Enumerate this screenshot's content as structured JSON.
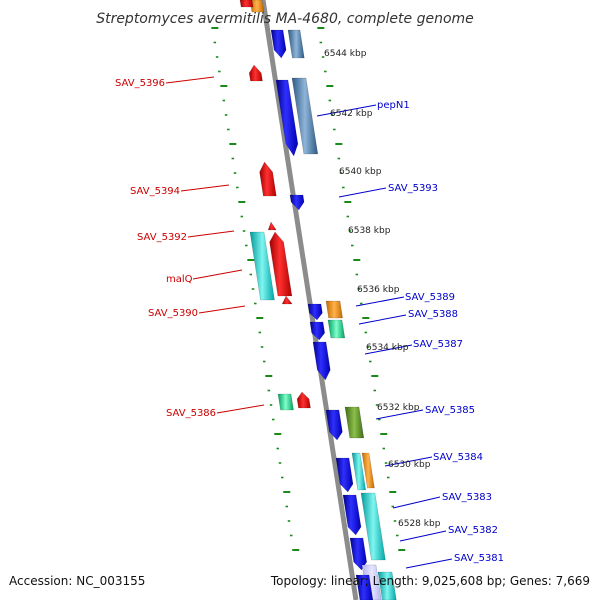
{
  "title": "Streptomyces avermitilis MA-4680, complete genome",
  "footer": {
    "accession": "Accession: NC_003155",
    "stats": "Topology: linear; Length: 9,025,608 bp; Genes: 7,669"
  },
  "colors": {
    "backbone": "#8c8c8c",
    "tick": "#1a8a1a",
    "forward": "#0000ee",
    "reverse": "#ee0000",
    "label_left": "#cc0000",
    "label_right": "#0000cc"
  },
  "scale": {
    "marks": [
      "6544 kbp",
      "6542 kbp",
      "6540 kbp",
      "6538 kbp",
      "6536 kbp",
      "6534 kbp",
      "6532 kbp",
      "6530 kbp",
      "6528 kbp"
    ]
  },
  "genes_left": [
    "SAV_5396",
    "SAV_5394",
    "SAV_5392",
    "malQ",
    "SAV_5390",
    "SAV_5386"
  ],
  "genes_right": [
    "pepN1",
    "SAV_5393",
    "SAV_5389",
    "SAV_5388",
    "SAV_5387",
    "SAV_5385",
    "SAV_5384",
    "SAV_5383",
    "SAV_5382",
    "SAV_5381"
  ]
}
